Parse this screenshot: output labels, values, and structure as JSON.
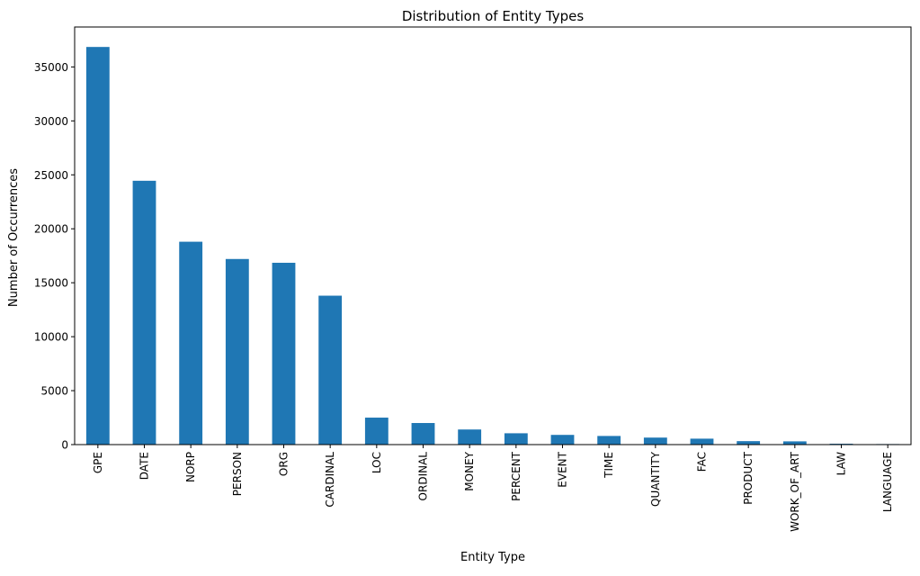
{
  "chart_data": {
    "type": "bar",
    "title": "Distribution of Entity Types",
    "xlabel": "Entity Type",
    "ylabel": "Number of Occurrences",
    "categories": [
      "GPE",
      "DATE",
      "NORP",
      "PERSON",
      "ORG",
      "CARDINAL",
      "LOC",
      "ORDINAL",
      "MONEY",
      "PERCENT",
      "EVENT",
      "TIME",
      "QUANTITY",
      "FAC",
      "PRODUCT",
      "WORK_OF_ART",
      "LAW",
      "LANGUAGE"
    ],
    "values": [
      36850,
      24450,
      18800,
      17200,
      16850,
      13800,
      2500,
      2000,
      1400,
      1050,
      900,
      800,
      650,
      550,
      320,
      300,
      80,
      50
    ],
    "ylim": [
      0,
      38700
    ],
    "yticks": [
      0,
      5000,
      10000,
      15000,
      20000,
      25000,
      30000,
      35000
    ],
    "grid": false,
    "bar_color": "#1f77b4"
  }
}
